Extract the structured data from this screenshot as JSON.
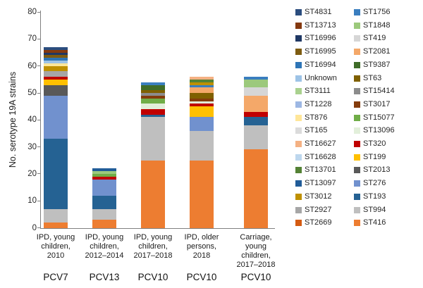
{
  "figure": {
    "ylabel": "No. serotype 19A strains"
  },
  "chart_data": {
    "type": "bar",
    "stacked": true,
    "title": "",
    "xlabel": "",
    "ylabel": "No. serotype 19A strains",
    "ylim": [
      0,
      80
    ],
    "yticks": [
      0,
      10,
      20,
      30,
      40,
      50,
      60,
      70,
      80
    ],
    "grid": false,
    "legend_position": "right",
    "legend_columns": 2,
    "legend_column_split": 17,
    "categories": [
      {
        "lines": [
          "IPD, young",
          "children,",
          "2010"
        ],
        "group": "PCV7",
        "total": 67
      },
      {
        "lines": [
          "IPD, young",
          "children,",
          "2012–2014"
        ],
        "group": "PCV13",
        "total": 22
      },
      {
        "lines": [
          "IPD, young",
          "children,",
          "2017–2018"
        ],
        "group": "PCV10",
        "total": 54
      },
      {
        "lines": [
          "IPD, older",
          "persons,",
          "2018"
        ],
        "group": "PCV10",
        "total": 56
      },
      {
        "lines": [
          "Carriage,",
          "young",
          "children,",
          "2017–2018"
        ],
        "group": "PCV10",
        "total": 56
      }
    ],
    "series_note": "listed in legend order (column 1 top-to-bottom, then column 2); bars stack bottom-to-top in reverse of this order; values are per category left-to-right",
    "series": [
      {
        "name": "ST4831",
        "color": "#2B4D7E",
        "values": [
          1,
          0,
          0,
          0,
          0
        ]
      },
      {
        "name": "ST13713",
        "color": "#84390F",
        "values": [
          1,
          0,
          0,
          0,
          0
        ]
      },
      {
        "name": "ST16996",
        "color": "#1F3864",
        "values": [
          1,
          0,
          0,
          0,
          0
        ]
      },
      {
        "name": "ST16995",
        "color": "#7E5C11",
        "values": [
          1,
          0,
          0,
          0,
          0
        ]
      },
      {
        "name": "ST16994",
        "color": "#2E75B6",
        "values": [
          1,
          0,
          0,
          0,
          0
        ]
      },
      {
        "name": "Unknown",
        "color": "#9DC3E6",
        "values": [
          1,
          0,
          0,
          0,
          0
        ]
      },
      {
        "name": "ST3111",
        "color": "#A9D18E",
        "values": [
          0,
          0,
          0,
          0,
          0
        ]
      },
      {
        "name": "ST1228",
        "color": "#9DB7E3",
        "values": [
          0,
          0,
          0,
          0,
          0
        ]
      },
      {
        "name": "ST876",
        "color": "#FFE699",
        "values": [
          1,
          0,
          0,
          0,
          0
        ]
      },
      {
        "name": "ST165",
        "color": "#DBDBDB",
        "values": [
          0,
          0,
          0,
          0,
          0
        ]
      },
      {
        "name": "ST16627",
        "color": "#F4B183",
        "values": [
          0,
          0,
          0,
          1,
          0
        ]
      },
      {
        "name": "ST16628",
        "color": "#BDD7EE",
        "values": [
          0,
          0,
          0,
          0,
          0
        ]
      },
      {
        "name": "ST13701",
        "color": "#548235",
        "values": [
          0,
          0,
          0,
          1,
          0
        ]
      },
      {
        "name": "ST13097",
        "color": "#215C98",
        "values": [
          0,
          1,
          0,
          0,
          0
        ]
      },
      {
        "name": "ST3012",
        "color": "#BF9000",
        "values": [
          2,
          0,
          0,
          1,
          0
        ]
      },
      {
        "name": "ST2927",
        "color": "#A6A6A6",
        "values": [
          2,
          0,
          0,
          0,
          0
        ]
      },
      {
        "name": "ST2669",
        "color": "#D45B12",
        "values": [
          0,
          0,
          0,
          0,
          0
        ]
      },
      {
        "name": "ST1756",
        "color": "#3A7EBF",
        "values": [
          0,
          0,
          1,
          1,
          1
        ]
      },
      {
        "name": "ST1848",
        "color": "#9CC97C",
        "values": [
          0,
          1,
          0,
          0,
          3
        ]
      },
      {
        "name": "ST419",
        "color": "#D6D6D6",
        "values": [
          0,
          0,
          0,
          0,
          3
        ]
      },
      {
        "name": "ST2081",
        "color": "#F4A869",
        "values": [
          0,
          0,
          0,
          2,
          6
        ]
      },
      {
        "name": "ST9387",
        "color": "#3F6C28",
        "values": [
          0,
          0,
          2,
          0,
          0
        ]
      },
      {
        "name": "ST63",
        "color": "#7F6000",
        "values": [
          0,
          0,
          1,
          2,
          0
        ]
      },
      {
        "name": "ST15414",
        "color": "#8C8C8C",
        "values": [
          0,
          0,
          1,
          0,
          0
        ]
      },
      {
        "name": "ST3017",
        "color": "#843C0C",
        "values": [
          0,
          0,
          1,
          1,
          0
        ]
      },
      {
        "name": "ST15077",
        "color": "#70AD47",
        "values": [
          0,
          1,
          2,
          0,
          0
        ]
      },
      {
        "name": "ST13096",
        "color": "#E2EFDA",
        "values": [
          0,
          0,
          2,
          1,
          0
        ]
      },
      {
        "name": "ST320",
        "color": "#C00000",
        "values": [
          1,
          1,
          2,
          1,
          2
        ]
      },
      {
        "name": "ST199",
        "color": "#FFC000",
        "values": [
          2,
          0,
          0,
          4,
          0
        ]
      },
      {
        "name": "ST2013",
        "color": "#595959",
        "values": [
          4,
          0,
          0,
          0,
          0
        ]
      },
      {
        "name": "ST276",
        "color": "#7191CE",
        "values": [
          16,
          6,
          0,
          5,
          0
        ]
      },
      {
        "name": "ST193",
        "color": "#256293",
        "values": [
          26,
          5,
          1,
          0,
          3
        ]
      },
      {
        "name": "ST994",
        "color": "#BFBFBF",
        "values": [
          5,
          4,
          16,
          11,
          9
        ]
      },
      {
        "name": "ST416",
        "color": "#ED7D31",
        "values": [
          2,
          3,
          25,
          25,
          29
        ]
      }
    ]
  }
}
